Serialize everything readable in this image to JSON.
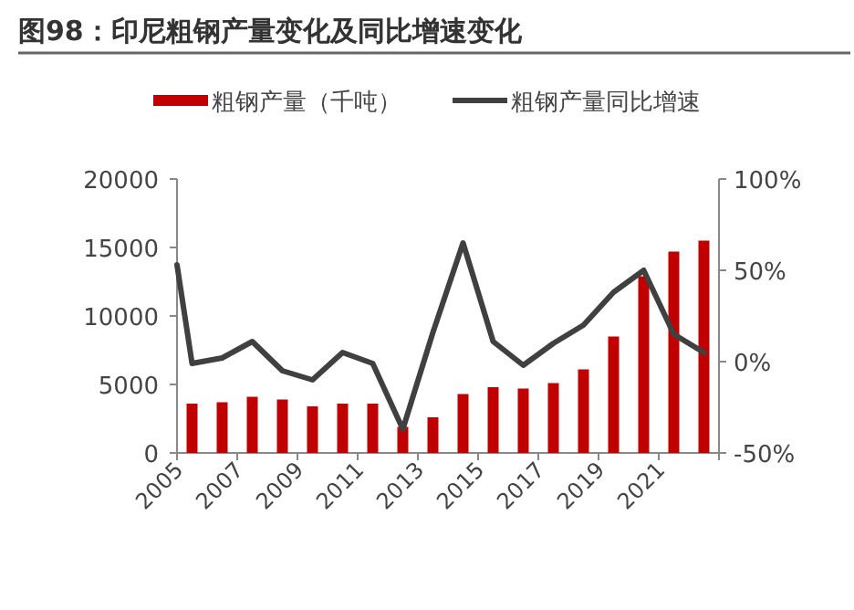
{
  "chart_data": {
    "type": "bar",
    "title": "图98：印尼粗钢产量变化及同比增速变化",
    "x": [
      2005,
      2006,
      2007,
      2008,
      2009,
      2010,
      2011,
      2012,
      2013,
      2014,
      2015,
      2016,
      2017,
      2018,
      2019,
      2020,
      2021,
      2022
    ],
    "series": [
      {
        "name": "粗钢产量（千吨）",
        "color": "#c00000",
        "values": [
          3600,
          3700,
          4100,
          3900,
          3400,
          3600,
          3600,
          1900,
          2600,
          4300,
          4800,
          4700,
          5100,
          6100,
          8500,
          12900,
          14700,
          15500
        ]
      },
      {
        "name": "粗钢产量同比增速",
        "type": "line",
        "axis": "y2",
        "color": "#404040",
        "x": [
          2004.5,
          2005,
          2006,
          2007,
          2008,
          2009,
          2010,
          2011,
          2012,
          2013,
          2014,
          2015,
          2016,
          2017,
          2018,
          2019,
          2020,
          2021,
          2022
        ],
        "values": [
          53,
          -1,
          2,
          11,
          -5,
          -10,
          5,
          -1,
          -37,
          16,
          65,
          11,
          -2,
          10,
          20,
          38,
          50,
          15,
          5
        ]
      }
    ],
    "xlim": [
      2004.5,
      2022.5
    ],
    "xticks": [
      {
        "value": 2004.5,
        "label": "2005"
      },
      {
        "value": 2006.5,
        "label": "2007"
      },
      {
        "value": 2008.5,
        "label": "2009"
      },
      {
        "value": 2010.5,
        "label": "2011"
      },
      {
        "value": 2012.5,
        "label": "2013"
      },
      {
        "value": 2014.5,
        "label": "2015"
      },
      {
        "value": 2016.5,
        "label": "2017"
      },
      {
        "value": 2018.5,
        "label": "2019"
      },
      {
        "value": 2020.5,
        "label": "2021"
      },
      {
        "value": 2022.5,
        "label": null
      }
    ],
    "ylim": [
      0,
      20000
    ],
    "yticks": [
      0,
      5000,
      10000,
      15000,
      20000
    ],
    "y2lim": [
      -50,
      100
    ],
    "y2ticks": [
      {
        "value": -50,
        "label": "-50%"
      },
      {
        "value": 0,
        "label": "0%"
      },
      {
        "value": 50,
        "label": "50%"
      },
      {
        "value": 100,
        "label": "100%"
      }
    ],
    "legend": "top",
    "grid": false,
    "marker": "none",
    "line_style": "solid"
  }
}
